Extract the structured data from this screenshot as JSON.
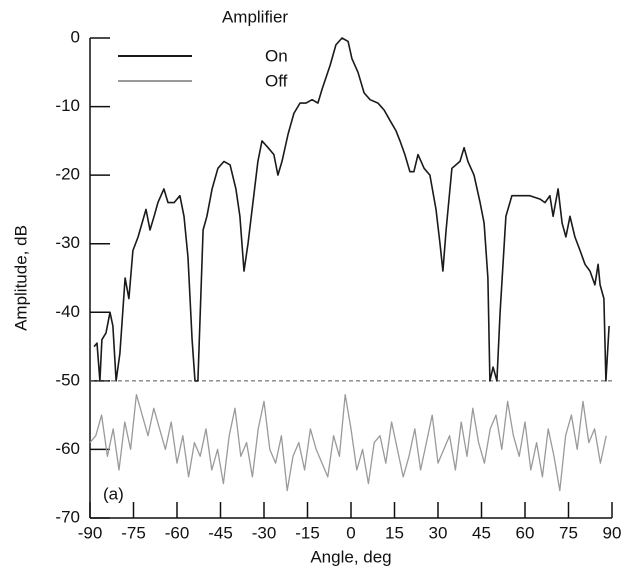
{
  "chart_data": {
    "type": "line",
    "xlabel": "Angle, deg",
    "ylabel": "Amplitude, dB",
    "legend_title": "Amplifier",
    "annotation": "(a)",
    "xlim": [
      -90,
      90
    ],
    "xticks": [
      -90,
      -75,
      -60,
      -45,
      -30,
      -15,
      0,
      15,
      30,
      45,
      60,
      75,
      90
    ],
    "ylim": [
      -70,
      0
    ],
    "yticks": [
      0,
      -10,
      -20,
      -30,
      -40,
      -50,
      -60,
      -70
    ],
    "hline": -50,
    "series": [
      {
        "name": "On",
        "color": "#1a1a1a",
        "x": [
          -88.6,
          -87.6,
          -86.6,
          -85.9,
          -84.5,
          -83.1,
          -82.1,
          -81.0,
          -79.7,
          -77.9,
          -76.6,
          -75.2,
          -73.4,
          -70.7,
          -69.3,
          -67.9,
          -66.6,
          -64.5,
          -63.1,
          -61.0,
          -59.0,
          -57.6,
          -56.2,
          -54.8,
          -53.8,
          -52.8,
          -51.0,
          -49.7,
          -47.9,
          -45.9,
          -43.8,
          -41.7,
          -39.7,
          -38.3,
          -36.9,
          -35.5,
          -34.1,
          -32.1,
          -30.7,
          -28.6,
          -26.6,
          -25.2,
          -23.8,
          -21.7,
          -19.7,
          -17.6,
          -15.5,
          -13.4,
          -11.4,
          -10,
          -7.2,
          -5.2,
          -3.1,
          -1,
          0.3,
          2.4,
          4.5,
          6.6,
          9.3,
          11.4,
          13.4,
          15.5,
          16.9,
          18.6,
          20.3,
          21.7,
          23.1,
          25.2,
          27.2,
          29.3,
          30.7,
          31.7,
          32.8,
          34.8,
          37.6,
          39,
          40.3,
          42.4,
          44.5,
          45.9,
          47.2,
          47.9,
          49,
          50.3,
          51.4,
          53.4,
          55.5,
          58.3,
          61.7,
          65.2,
          66.9,
          68.6,
          69.7,
          71.4,
          72.8,
          74.1,
          75.5,
          77.2,
          79,
          80.7,
          82.4,
          84.1,
          85.2,
          85.9,
          87.2,
          87.9,
          89
        ],
        "values": [
          -45,
          -44.5,
          -50,
          -44,
          -43,
          -40,
          -42,
          -50,
          -46,
          -35,
          -38,
          -31,
          -29,
          -25,
          -28,
          -26,
          -24,
          -22,
          -24,
          -24,
          -23,
          -26,
          -32,
          -44,
          -50,
          -50,
          -28,
          -26,
          -22,
          -19,
          -18,
          -18.5,
          -22,
          -26,
          -34,
          -30,
          -25,
          -18,
          -15,
          -16,
          -17,
          -20,
          -18,
          -14,
          -11,
          -9.5,
          -9.5,
          -9,
          -9.5,
          -7.5,
          -4,
          -1,
          0,
          -0.5,
          -3,
          -5,
          -8,
          -9,
          -9.5,
          -10.5,
          -12,
          -13.5,
          -15,
          -17,
          -19.5,
          -19.5,
          -17,
          -19,
          -20,
          -25,
          -30,
          -34,
          -28,
          -19,
          -18,
          -16,
          -18,
          -20,
          -24,
          -27,
          -35,
          -50,
          -48,
          -50,
          -40,
          -26,
          -23,
          -23,
          -23,
          -23.5,
          -24,
          -23,
          -26,
          -22,
          -27,
          -29,
          -26,
          -29,
          -31,
          -33,
          -34,
          -36,
          -33,
          -36,
          -38,
          -50,
          -42
        ]
      },
      {
        "name": "Off",
        "color": "#9a9a9a",
        "x": [
          -90,
          -88,
          -86,
          -84,
          -82,
          -80,
          -78,
          -76,
          -74,
          -72,
          -70,
          -68,
          -66,
          -64,
          -62,
          -60,
          -58,
          -56,
          -54,
          -52,
          -50,
          -48,
          -46,
          -44,
          -42,
          -40,
          -38,
          -36,
          -34,
          -32,
          -30,
          -28,
          -26,
          -24,
          -22,
          -20,
          -18,
          -16,
          -14,
          -12,
          -10,
          -8,
          -6,
          -4,
          -2,
          0,
          2,
          4,
          6,
          8,
          10,
          12,
          14,
          16,
          18,
          20,
          22,
          24,
          26,
          28,
          30,
          32,
          34,
          36,
          38,
          40,
          42,
          44,
          46,
          48,
          50,
          52,
          54,
          56,
          58,
          60,
          62,
          64,
          66,
          68,
          70,
          72,
          74,
          76,
          78,
          80,
          82,
          84,
          86,
          88
        ],
        "values": [
          -59,
          -58,
          -55,
          -61,
          -57,
          -63,
          -56,
          -60,
          -52,
          -55,
          -58,
          -54,
          -57,
          -60,
          -56,
          -62,
          -58,
          -64,
          -59,
          -61,
          -57,
          -63,
          -60,
          -65,
          -58,
          -54,
          -61,
          -59,
          -64,
          -57,
          -53,
          -60,
          -62,
          -58,
          -66,
          -61,
          -59,
          -63,
          -57,
          -60,
          -62,
          -64,
          -58,
          -61,
          -52,
          -57,
          -63,
          -60,
          -65,
          -59,
          -58,
          -62,
          -56,
          -60,
          -64,
          -61,
          -57,
          -63,
          -59,
          -55,
          -62,
          -60,
          -58,
          -63,
          -56,
          -61,
          -54,
          -59,
          -62,
          -57,
          -55,
          -60,
          -53,
          -58,
          -61,
          -56,
          -63,
          -59,
          -64,
          -57,
          -61,
          -66,
          -58,
          -55,
          -60,
          -53,
          -59,
          -57,
          -62,
          -58
        ]
      }
    ]
  }
}
